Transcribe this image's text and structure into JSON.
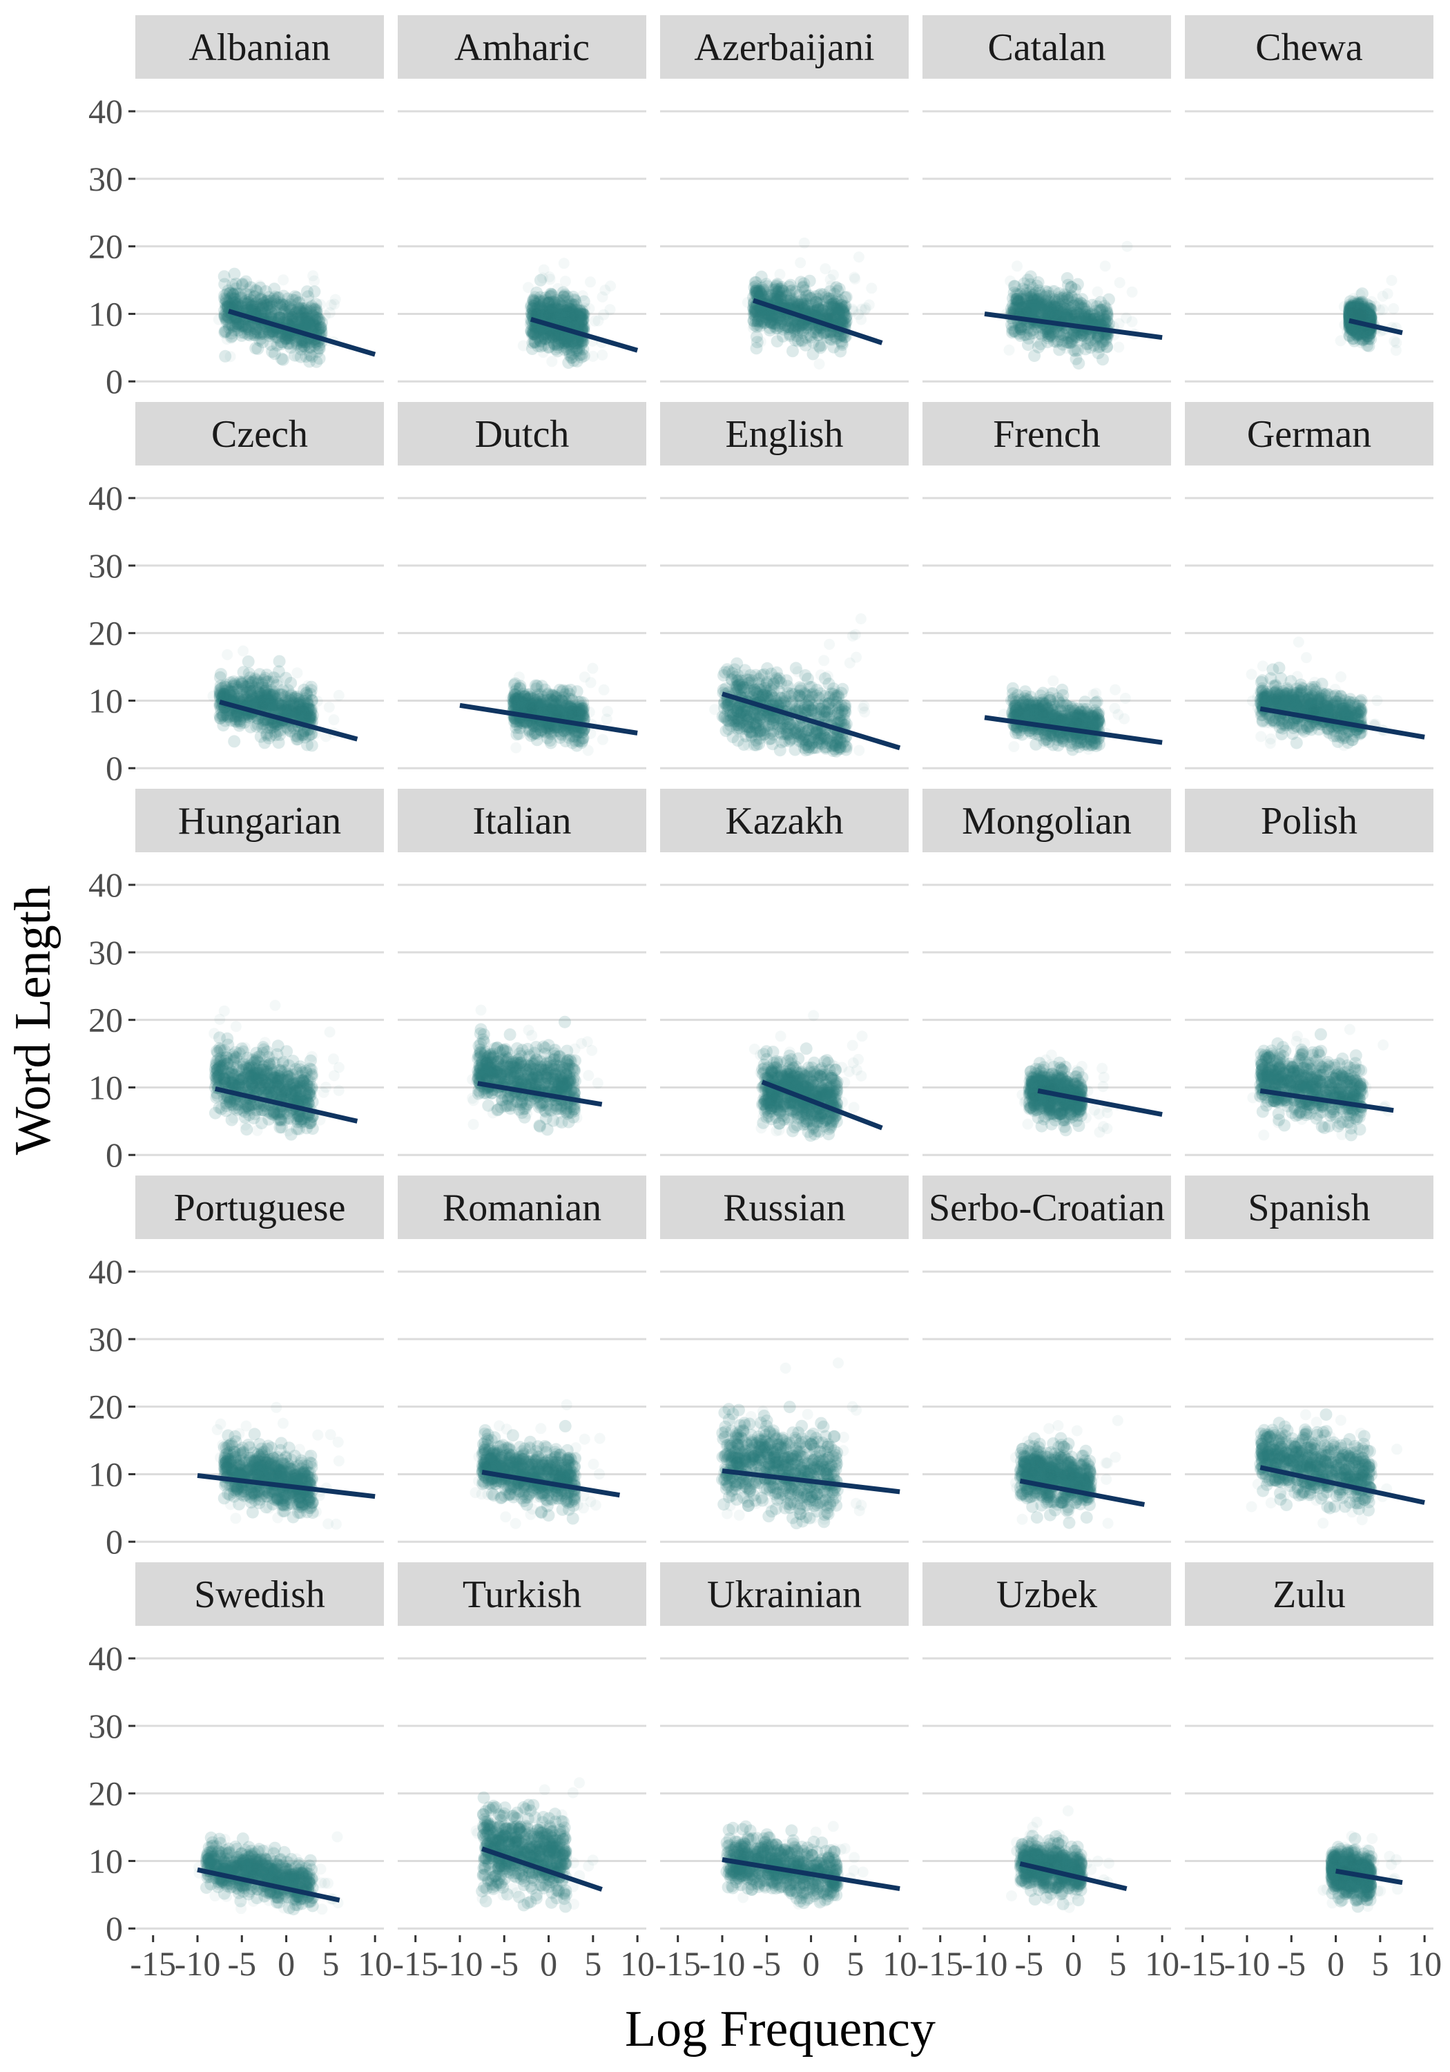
{
  "chart_data": {
    "type": "scatter",
    "xlabel": "Log Frequency",
    "ylabel": "Word Length",
    "xlim": [
      -17,
      11
    ],
    "ylim": [
      -1,
      44
    ],
    "xticks": [
      -15,
      -10,
      -5,
      0,
      5,
      10
    ],
    "yticks": [
      0,
      10,
      20,
      30,
      40
    ],
    "xtick_labels": [
      "-15",
      "-10",
      "-5",
      "0",
      "5",
      "10"
    ],
    "ytick_labels": [
      "0",
      "10",
      "20",
      "30",
      "40"
    ],
    "grid": true,
    "legend": "none",
    "colors": {
      "points": "#2a7f7f",
      "fit_line": "#0f3460",
      "strip_bg": "#d9d9d9",
      "grid": "#dcdcdc"
    },
    "panels": [
      {
        "name": "Albanian",
        "x_range": [
          -7,
          4
        ],
        "y_center": 9,
        "y_spread": 5,
        "fit": [
          [
            -6.5,
            10.4
          ],
          [
            10,
            4.0
          ]
        ]
      },
      {
        "name": "Amharic",
        "x_range": [
          -2,
          4
        ],
        "y_center": 8.5,
        "y_spread": 5,
        "fit": [
          [
            -2,
            9.2
          ],
          [
            10,
            4.6
          ]
        ]
      },
      {
        "name": "Azerbaijani",
        "x_range": [
          -6.5,
          4
        ],
        "y_center": 10,
        "y_spread": 5,
        "fit": [
          [
            -6.5,
            12.0
          ],
          [
            8,
            5.7
          ]
        ]
      },
      {
        "name": "Catalan",
        "x_range": [
          -7,
          4
        ],
        "y_center": 9.5,
        "y_spread": 5,
        "fit": [
          [
            -10,
            10.0
          ],
          [
            10,
            6.5
          ]
        ]
      },
      {
        "name": "Chewa",
        "x_range": [
          1.5,
          4
        ],
        "y_center": 9,
        "y_spread": 3,
        "fit": [
          [
            1.5,
            9.0
          ],
          [
            7.5,
            7.2
          ]
        ]
      },
      {
        "name": "Czech",
        "x_range": [
          -7.5,
          3
        ],
        "y_center": 9,
        "y_spread": 5,
        "fit": [
          [
            -7.5,
            9.8
          ],
          [
            8,
            4.3
          ]
        ]
      },
      {
        "name": "Dutch",
        "x_range": [
          -4,
          4
        ],
        "y_center": 8,
        "y_spread": 4,
        "fit": [
          [
            -10,
            9.3
          ],
          [
            10,
            5.2
          ]
        ]
      },
      {
        "name": "English",
        "x_range": [
          -10,
          4
        ],
        "y_center": 8,
        "y_spread": 7,
        "fit": [
          [
            -10,
            11.0
          ],
          [
            10,
            3.0
          ]
        ]
      },
      {
        "name": "French",
        "x_range": [
          -7,
          3
        ],
        "y_center": 7,
        "y_spread": 4,
        "fit": [
          [
            -10,
            7.5
          ],
          [
            10,
            3.8
          ]
        ]
      },
      {
        "name": "German",
        "x_range": [
          -8.5,
          3
        ],
        "y_center": 8.5,
        "y_spread": 4,
        "fit": [
          [
            -8.5,
            8.8
          ],
          [
            10,
            4.6
          ]
        ]
      },
      {
        "name": "Hungarian",
        "x_range": [
          -8,
          3
        ],
        "y_center": 10,
        "y_spread": 6,
        "fit": [
          [
            -8,
            9.8
          ],
          [
            8,
            5.0
          ]
        ]
      },
      {
        "name": "Italian",
        "x_range": [
          -8,
          3
        ],
        "y_center": 11,
        "y_spread": 6,
        "fit": [
          [
            -8,
            10.6
          ],
          [
            6,
            7.5
          ]
        ]
      },
      {
        "name": "Kazakh",
        "x_range": [
          -5.5,
          3
        ],
        "y_center": 9,
        "y_spread": 6,
        "fit": [
          [
            -5.5,
            10.8
          ],
          [
            8,
            4.0
          ]
        ]
      },
      {
        "name": "Mongolian",
        "x_range": [
          -5,
          1
        ],
        "y_center": 9,
        "y_spread": 4,
        "fit": [
          [
            -4,
            9.5
          ],
          [
            10,
            6.0
          ]
        ]
      },
      {
        "name": "Polish",
        "x_range": [
          -8.5,
          3
        ],
        "y_center": 10,
        "y_spread": 6,
        "fit": [
          [
            -8.5,
            9.5
          ],
          [
            6.5,
            6.6
          ]
        ]
      },
      {
        "name": "Portuguese",
        "x_range": [
          -7,
          3
        ],
        "y_center": 9.5,
        "y_spread": 5,
        "fit": [
          [
            -10,
            9.8
          ],
          [
            10,
            6.7
          ]
        ]
      },
      {
        "name": "Romanian",
        "x_range": [
          -7.5,
          3
        ],
        "y_center": 10,
        "y_spread": 5,
        "fit": [
          [
            -7.5,
            10.3
          ],
          [
            8,
            6.9
          ]
        ]
      },
      {
        "name": "Russian",
        "x_range": [
          -10,
          3
        ],
        "y_center": 11,
        "y_spread": 8,
        "fit": [
          [
            -10,
            10.5
          ],
          [
            10,
            7.4
          ]
        ]
      },
      {
        "name": "Serbo-Croatian",
        "x_range": [
          -6,
          2
        ],
        "y_center": 9.5,
        "y_spread": 5,
        "fit": [
          [
            -6,
            9.0
          ],
          [
            8,
            5.5
          ]
        ]
      },
      {
        "name": "Spanish",
        "x_range": [
          -8.5,
          4
        ],
        "y_center": 11,
        "y_spread": 6,
        "fit": [
          [
            -8.5,
            11.0
          ],
          [
            10,
            5.8
          ]
        ]
      },
      {
        "name": "Swedish",
        "x_range": [
          -9,
          3
        ],
        "y_center": 8,
        "y_spread": 4,
        "fit": [
          [
            -10,
            8.7
          ],
          [
            6,
            4.2
          ]
        ]
      },
      {
        "name": "Turkish",
        "x_range": [
          -7.5,
          2
        ],
        "y_center": 11,
        "y_spread": 7,
        "fit": [
          [
            -7.5,
            11.8
          ],
          [
            6,
            5.8
          ]
        ]
      },
      {
        "name": "Ukrainian",
        "x_range": [
          -9.5,
          3
        ],
        "y_center": 9,
        "y_spread": 5,
        "fit": [
          [
            -10,
            10.2
          ],
          [
            10,
            5.9
          ]
        ]
      },
      {
        "name": "Uzbek",
        "x_range": [
          -6,
          1
        ],
        "y_center": 9,
        "y_spread": 4,
        "fit": [
          [
            -6,
            9.6
          ],
          [
            6,
            5.9
          ]
        ]
      },
      {
        "name": "Zulu",
        "x_range": [
          -0.5,
          4
        ],
        "y_center": 8,
        "y_spread": 4,
        "fit": [
          [
            0,
            8.5
          ],
          [
            7.5,
            6.8
          ]
        ]
      }
    ]
  }
}
